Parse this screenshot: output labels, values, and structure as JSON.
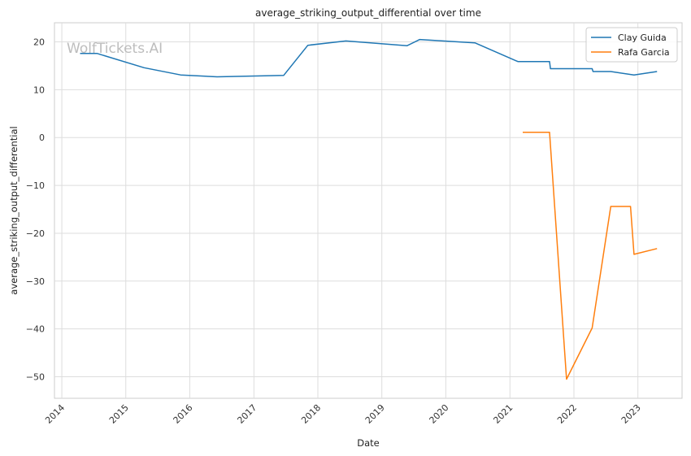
{
  "chart_data": {
    "type": "line",
    "title": "average_striking_output_differential over time",
    "xlabel": "Date",
    "ylabel": "average_striking_output_differential",
    "watermark": "WolfTickets.AI",
    "xlim": [
      "2013-11-20",
      "2023-09-10"
    ],
    "ylim": [
      -54.5,
      24
    ],
    "x_ticks": [
      "2014",
      "2015",
      "2016",
      "2017",
      "2018",
      "2019",
      "2020",
      "2021",
      "2022",
      "2023"
    ],
    "y_ticks": [
      20,
      10,
      0,
      -10,
      -20,
      -30,
      -40,
      -50
    ],
    "y_tick_labels": [
      "20",
      "10",
      "0",
      "−10",
      "−20",
      "−30",
      "−40",
      "−50"
    ],
    "grid": true,
    "legend": "top-right",
    "series": [
      {
        "name": "Clay Guida",
        "color": "#1f77b4",
        "points": [
          {
            "x": "2014-04-15",
            "y": 17.6
          },
          {
            "x": "2014-07-20",
            "y": 17.6
          },
          {
            "x": "2015-04-15",
            "y": 14.6
          },
          {
            "x": "2015-11-10",
            "y": 13.1
          },
          {
            "x": "2016-06-05",
            "y": 12.7
          },
          {
            "x": "2017-06-20",
            "y": 13.0
          },
          {
            "x": "2017-11-05",
            "y": 19.3
          },
          {
            "x": "2018-06-10",
            "y": 20.2
          },
          {
            "x": "2019-05-25",
            "y": 19.2
          },
          {
            "x": "2019-08-05",
            "y": 20.5
          },
          {
            "x": "2020-06-15",
            "y": 19.8
          },
          {
            "x": "2021-02-15",
            "y": 15.9
          },
          {
            "x": "2021-08-15",
            "y": 15.9
          },
          {
            "x": "2021-08-20",
            "y": 14.4
          },
          {
            "x": "2022-04-15",
            "y": 14.4
          },
          {
            "x": "2022-04-20",
            "y": 13.8
          },
          {
            "x": "2022-07-30",
            "y": 13.8
          },
          {
            "x": "2022-12-10",
            "y": 13.1
          },
          {
            "x": "2023-04-20",
            "y": 13.8
          }
        ]
      },
      {
        "name": "Rafa Garcia",
        "color": "#ff7f0e",
        "points": [
          {
            "x": "2021-03-15",
            "y": 1.1
          },
          {
            "x": "2021-08-15",
            "y": 1.1
          },
          {
            "x": "2021-11-20",
            "y": -50.5
          },
          {
            "x": "2022-04-15",
            "y": -39.8
          },
          {
            "x": "2022-07-30",
            "y": -14.4
          },
          {
            "x": "2022-11-20",
            "y": -14.4
          },
          {
            "x": "2022-12-10",
            "y": -24.4
          },
          {
            "x": "2023-04-20",
            "y": -23.2
          }
        ]
      }
    ]
  }
}
